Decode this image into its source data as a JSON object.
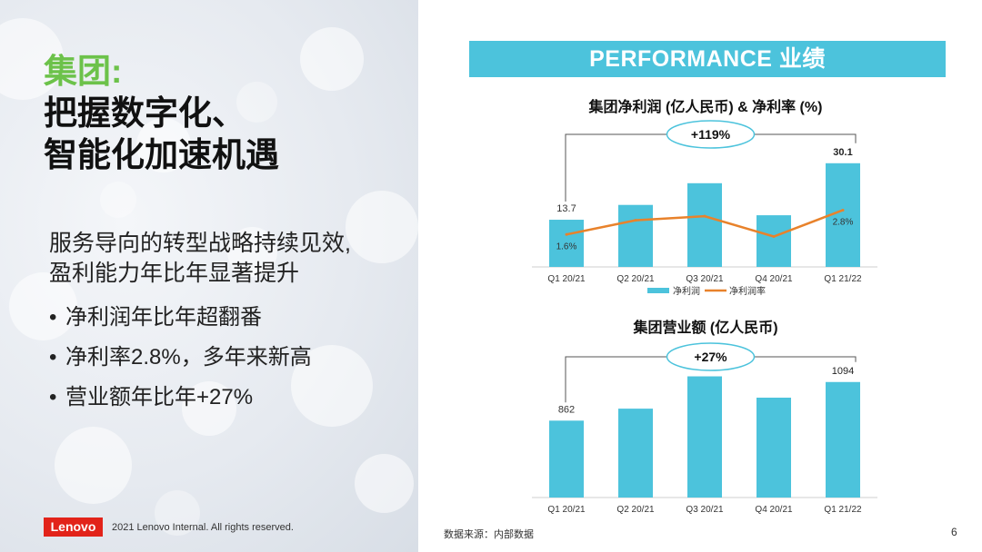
{
  "headline": {
    "line1": "集团:",
    "line2": "把握数字化、",
    "line3": "智能化加速机遇"
  },
  "lead": {
    "line1": "服务导向的转型战略持续见效,",
    "line2": "盈利能力年比年显著提升"
  },
  "bullets": [
    "净利润年比年超翻番",
    "净利率2.8%，多年来新高",
    "营业额年比年+27%"
  ],
  "footer": {
    "logo": "Lenovo",
    "copyright": "2021 Lenovo Internal. All rights reserved.",
    "source": "数据来源：内部数据",
    "page": "6"
  },
  "banner": "PERFORMANCE 业绩",
  "colors": {
    "bar": "#4cc3dc",
    "line": "#e8822b",
    "accent_green": "#6cc24a",
    "logo_red": "#e2231a"
  },
  "chart_data": [
    {
      "type": "bar",
      "title": "集团净利润 (亿人民币) & 净利率 (%)",
      "categories": [
        "Q1 20/21",
        "Q2 20/21",
        "Q3 20/21",
        "Q4 20/21",
        "Q1 21/22"
      ],
      "series": [
        {
          "name": "净利润",
          "type": "bar",
          "values": [
            13.7,
            18.0,
            24.3,
            15.0,
            30.1
          ]
        },
        {
          "name": "净利润率",
          "type": "line",
          "values": [
            1.6,
            2.3,
            2.5,
            1.5,
            2.8
          ]
        }
      ],
      "data_labels": {
        "bar_first": "13.7",
        "bar_last": "30.1",
        "line_first": "1.6%",
        "line_last": "2.8%"
      },
      "growth_label": "+119%",
      "ylim": [
        0,
        34
      ],
      "line_ylim": [
        0,
        6
      ],
      "legend": "bottom-center"
    },
    {
      "type": "bar",
      "title": "集团营业额 (亿人民币)",
      "categories": [
        "Q1 20/21",
        "Q2 20/21",
        "Q3 20/21",
        "Q4 20/21",
        "Q1 21/22"
      ],
      "series": [
        {
          "name": "营业额",
          "values": [
            862,
            934,
            1128,
            1000,
            1094
          ]
        }
      ],
      "data_labels": {
        "bar_first": "862",
        "bar_last": "1094"
      },
      "growth_label": "+27%",
      "ylim": [
        400,
        1180
      ]
    }
  ]
}
